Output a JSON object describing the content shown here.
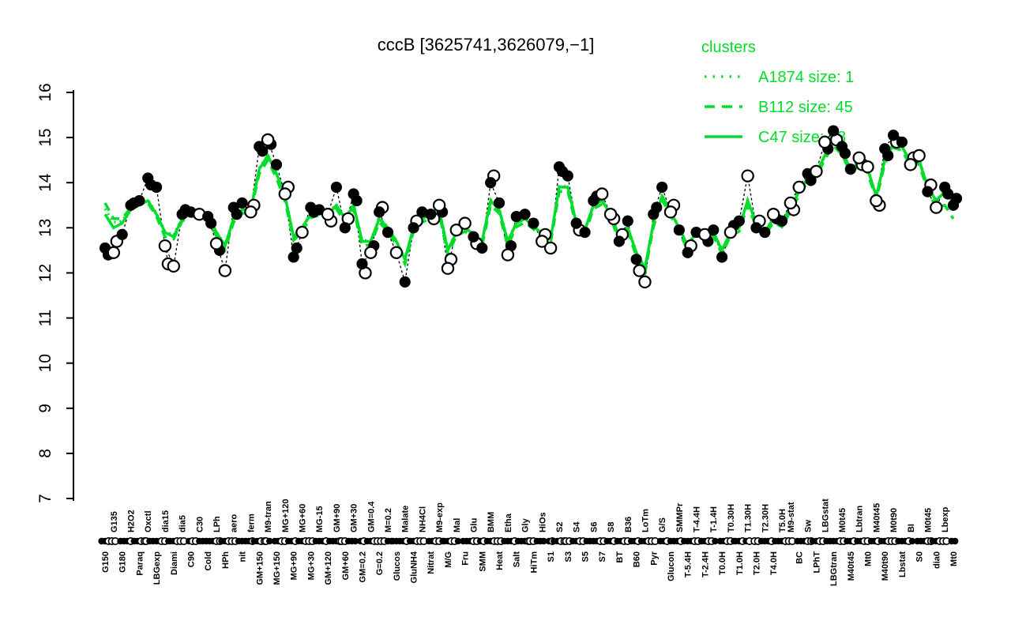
{
  "title": "cccB [3625741,3626079,−1]",
  "legend": {
    "title": "clusters",
    "entries": [
      {
        "label": "A1874 size: 1",
        "style": "dotted"
      },
      {
        "label": "B112 size: 45",
        "style": "dashed"
      },
      {
        "label": "C47 size: 98",
        "style": "solid"
      }
    ]
  },
  "colors": {
    "cluster_green": "#00dd2a",
    "point_black": "#000000",
    "open_fill": "#ffffff",
    "background": "#ffffff"
  },
  "y_axis": {
    "min": 7,
    "max": 16,
    "ticks": [
      7,
      8,
      9,
      10,
      11,
      12,
      13,
      14,
      15,
      16
    ]
  },
  "chart_data": {
    "type": "line",
    "title": "cccB [3625741,3626079,−1]",
    "ylabel": "",
    "xlabel": "",
    "ylim": [
      7,
      16
    ],
    "yticks": [
      7,
      8,
      9,
      10,
      11,
      12,
      13,
      14,
      15,
      16
    ],
    "grid": false,
    "legend_position": "top-right",
    "categories": [
      "G150",
      "G135",
      "G180",
      "H2O2",
      "Paraq",
      "Oxctl",
      "LBGexp",
      "dia15",
      "Diami",
      "dia5",
      "C90",
      "C30",
      "Cold",
      "LPh",
      "HPh",
      "aero",
      "nit",
      "ferm",
      "GM+150",
      "M9-tran",
      "MG+150",
      "MG+120",
      "MG+90",
      "MG+60",
      "MG+30",
      "MG-15",
      "GM+120",
      "GM+90",
      "GM+60",
      "GM+30",
      "GM=0.2",
      "GM=0.4",
      "G=0.2",
      "M=0.2",
      "Glucos",
      "Malate",
      "GluNH4",
      "NH4Cl",
      "Nitrat",
      "M9-exp",
      "M/G",
      "Mal",
      "Fru",
      "Glu",
      "SMM",
      "BMM",
      "Heat",
      "Etha",
      "Salt",
      "Gly",
      "HiTm",
      "HiOs",
      "S1",
      "S2",
      "S3",
      "S4",
      "S5",
      "S6",
      "S7",
      "S8",
      "BT",
      "B36",
      "B60",
      "LoTm",
      "Pyr",
      "G/S",
      "Glucon",
      "SMMPr",
      "T-5.4H",
      "T-4.4H",
      "T-2.4H",
      "T-1.4H",
      "T0.0H",
      "T0.30H",
      "T1.0H",
      "T1.30H",
      "T2.0H",
      "T2.30H",
      "T4.0H",
      "T5.0H",
      "M9-stat",
      "BC",
      "Sw",
      "LPhT",
      "LBGstat",
      "LBGtran",
      "M0t45",
      "M40t45",
      "Lbtran",
      "Mt0",
      "M40t45",
      "M40t90",
      "M0t90",
      "Lbstat",
      "BI",
      "S0",
      "M0t45",
      "dia0",
      "Lbexp",
      "Mt0"
    ],
    "label_rows": "btbtbtbtbtbtbtbtbtbtbtbtbtbtbtbtbtbtbtbtbtbtbtbtbtbtbtbtbtbtbtbtbtbtbtbtbtbtbtbttbtbtbtbtbtbtbtbtbtb",
    "series": [
      {
        "name": "A1874",
        "legend": "A1874 size: 1",
        "style": "dotted",
        "size": 1,
        "values": [
          13.42,
          13.12,
          13.15,
          13.44,
          13.53,
          13.62,
          13.33,
          12.93,
          12.83,
          13.23,
          13.32,
          13.32,
          13.27,
          12.92,
          12.62,
          13.22,
          13.42,
          13.42,
          14.32,
          14.62,
          14.22,
          13.72,
          12.82,
          13.02,
          13.32,
          13.37,
          13.32,
          13.52,
          13.22,
          13.52,
          12.72,
          12.72,
          13.22,
          13.02,
          12.72,
          12.32,
          13.02,
          13.22,
          13.32,
          13.42,
          12.52,
          12.92,
          13.02,
          12.87,
          12.72,
          13.62,
          13.42,
          12.72,
          13.12,
          13.22,
          13.07,
          12.87,
          12.77,
          13.92,
          13.92,
          13.12,
          12.97,
          13.52,
          13.62,
          13.32,
          12.82,
          13.02,
          12.47,
          12.12,
          13.12,
          13.72,
          13.38,
          13.02,
          12.62,
          12.92,
          12.87,
          12.92,
          12.52,
          12.92,
          13.02,
          13.62,
          13.12,
          12.92,
          13.22,
          13.12,
          13.47,
          13.82,
          14.12,
          14.22,
          14.62,
          14.92,
          14.72,
          14.32,
          14.47,
          14.32,
          13.72,
          14.52,
          14.87,
          14.82,
          14.47,
          14.52,
          13.92,
          13.62,
          13.82,
          13.55
        ]
      },
      {
        "name": "B112",
        "legend": "B112 size: 45",
        "style": "dashed",
        "size": 45,
        "values": [
          13.55,
          13.2,
          13.2,
          13.45,
          13.55,
          13.55,
          13.25,
          12.8,
          12.75,
          13.15,
          13.25,
          13.25,
          13.2,
          12.82,
          12.52,
          13.12,
          13.32,
          13.35,
          14.2,
          14.5,
          14.1,
          13.6,
          12.72,
          12.92,
          13.22,
          13.28,
          13.22,
          13.42,
          13.12,
          13.42,
          12.6,
          12.62,
          13.12,
          12.92,
          12.62,
          12.2,
          12.92,
          13.12,
          13.22,
          13.32,
          12.4,
          12.82,
          12.92,
          12.77,
          12.6,
          13.5,
          13.32,
          12.6,
          13.02,
          13.12,
          12.97,
          12.77,
          12.67,
          13.8,
          13.82,
          13.02,
          12.87,
          13.42,
          13.52,
          13.22,
          12.72,
          12.92,
          12.37,
          12.0,
          13.02,
          13.62,
          13.27,
          12.92,
          12.5,
          12.82,
          12.77,
          12.82,
          12.42,
          12.82,
          12.92,
          13.5,
          13.02,
          12.82,
          13.12,
          13.02,
          13.37,
          13.72,
          14.02,
          14.12,
          14.52,
          14.82,
          14.62,
          14.22,
          14.37,
          14.22,
          13.62,
          14.42,
          14.77,
          14.72,
          14.37,
          14.42,
          13.82,
          13.45,
          13.5,
          13.2
        ]
      },
      {
        "name": "C47",
        "legend": "C47 size: 98",
        "style": "solid",
        "size": 98,
        "values": [
          13.3,
          13.0,
          13.1,
          13.4,
          13.5,
          13.6,
          13.3,
          12.9,
          12.8,
          13.2,
          13.3,
          13.3,
          13.25,
          12.9,
          12.6,
          13.2,
          13.4,
          13.4,
          14.3,
          14.6,
          14.2,
          13.7,
          12.8,
          13.0,
          13.3,
          13.35,
          13.3,
          13.5,
          13.2,
          13.5,
          12.7,
          12.7,
          13.2,
          13.0,
          12.7,
          12.3,
          13.0,
          13.2,
          13.3,
          13.4,
          12.5,
          12.9,
          13.0,
          12.85,
          12.7,
          13.6,
          13.4,
          12.7,
          13.1,
          13.2,
          13.05,
          12.85,
          12.75,
          13.9,
          13.9,
          13.1,
          12.95,
          13.5,
          13.6,
          13.3,
          12.8,
          13.0,
          12.45,
          12.1,
          13.1,
          13.7,
          13.35,
          13.0,
          12.6,
          12.9,
          12.85,
          12.9,
          12.5,
          12.9,
          13.0,
          13.6,
          13.1,
          12.9,
          13.2,
          13.1,
          13.45,
          13.8,
          14.1,
          14.2,
          14.6,
          14.9,
          14.7,
          14.3,
          14.45,
          14.3,
          13.7,
          14.5,
          14.85,
          14.8,
          14.45,
          14.5,
          13.9,
          13.6,
          13.8,
          13.6
        ]
      }
    ],
    "points": {
      "description": "probe expression values; f=filled black circle, o=open circle",
      "values": [
        12.55,
        12.45,
        12.85,
        13.5,
        13.6,
        14.1,
        13.9,
        12.6,
        12.15,
        13.3,
        13.35,
        13.3,
        13.25,
        12.65,
        12.05,
        13.45,
        13.55,
        13.35,
        14.8,
        14.95,
        14.4,
        13.75,
        12.35,
        12.9,
        13.45,
        13.4,
        13.3,
        13.9,
        13.0,
        13.75,
        12.2,
        12.45,
        13.35,
        12.9,
        12.45,
        11.8,
        13.0,
        13.35,
        13.3,
        13.5,
        12.1,
        12.95,
        13.1,
        12.8,
        12.55,
        14.0,
        13.55,
        12.4,
        13.25,
        13.3,
        13.1,
        12.7,
        12.55,
        14.35,
        14.15,
        13.1,
        12.9,
        13.6,
        13.75,
        13.3,
        12.7,
        13.15,
        12.3,
        11.8,
        13.3,
        13.9,
        13.35,
        12.95,
        12.45,
        12.9,
        12.85,
        12.95,
        12.35,
        12.9,
        13.15,
        14.15,
        13.0,
        12.9,
        13.3,
        13.15,
        13.55,
        13.9,
        14.2,
        14.25,
        14.9,
        15.15,
        14.8,
        14.3,
        14.55,
        14.35,
        13.6,
        14.75,
        15.05,
        14.9,
        14.4,
        14.6,
        13.8,
        13.45,
        13.9,
        13.5
      ],
      "markers": "fofffffooffofooffofofofoffoffffoffoffffooooffffofffoofffffoofffoffofffoffofoffofoofoofffooofffoofoffffffo",
      "values2": [
        12.4,
        12.7,
        null,
        13.55,
        null,
        13.95,
        null,
        12.2,
        null,
        13.4,
        null,
        null,
        13.1,
        12.5,
        null,
        13.3,
        null,
        13.5,
        14.7,
        14.85,
        null,
        13.9,
        12.55,
        null,
        13.35,
        null,
        13.15,
        null,
        13.2,
        13.6,
        12.0,
        12.6,
        13.45,
        null,
        null,
        null,
        13.15,
        null,
        13.2,
        13.35,
        12.3,
        null,
        null,
        12.65,
        null,
        14.15,
        null,
        12.6,
        null,
        null,
        null,
        12.85,
        null,
        14.25,
        null,
        12.95,
        null,
        13.7,
        null,
        13.2,
        12.85,
        null,
        12.05,
        null,
        13.45,
        null,
        13.5,
        null,
        12.6,
        null,
        12.7,
        null,
        null,
        13.05,
        null,
        null,
        13.15,
        null,
        13.2,
        null,
        13.4,
        null,
        14.05,
        null,
        14.75,
        14.95,
        14.65,
        null,
        14.4,
        null,
        13.5,
        14.6,
        14.9,
        null,
        14.55,
        null,
        13.95,
        null,
        13.75,
        13.65
      ],
      "markers2": "fo-f-f-o-f--ff-f-off-of-f-o-ofofo---o-ofo--o-o-f---o-f-o-f-oo-o-f-o-o-f--f--o-f-o-f-fof-o-ofo-o-o-ff"
    },
    "strip": [
      "ffo",
      "oo",
      "ff",
      "fof",
      "ffoo",
      "of",
      "fff",
      "oof",
      "ffo",
      "oo",
      "fo",
      "off",
      "ff",
      "foo",
      "ffo",
      "oo",
      "fff",
      "fo",
      "ffoo",
      "of",
      "ff",
      "oof",
      "fo",
      "ffo",
      "oo",
      "fff",
      "of",
      "ffo",
      "oof",
      "ff",
      "fo",
      "ffo",
      "oo",
      "off",
      "fff",
      "fo",
      "ffo",
      "oo",
      "ff",
      "oof",
      "ffo",
      "of",
      "ff",
      "foo",
      "fo",
      "ffo",
      "oo",
      "fff",
      "of",
      "ffo",
      "oof",
      "ff",
      "fo",
      "ffoo",
      "oo",
      "ffo",
      "of",
      "fff",
      "oo",
      "ffo",
      "ff",
      "oof",
      "fo",
      "ffo",
      "oo",
      "ff",
      "off",
      "fo",
      "fff",
      "oo",
      "ffo",
      "of",
      "ff",
      "oof",
      "ffo",
      "fo",
      "oo",
      "fff",
      "of",
      "ffo",
      "oo",
      "ff",
      "foo",
      "ffo",
      "of",
      "fff",
      "oo",
      "ffo",
      "ff",
      "oof",
      "fo",
      "ffo",
      "oo",
      "fff",
      "of",
      "ff",
      "foo",
      "ffo",
      "oo",
      "ff"
    ]
  }
}
